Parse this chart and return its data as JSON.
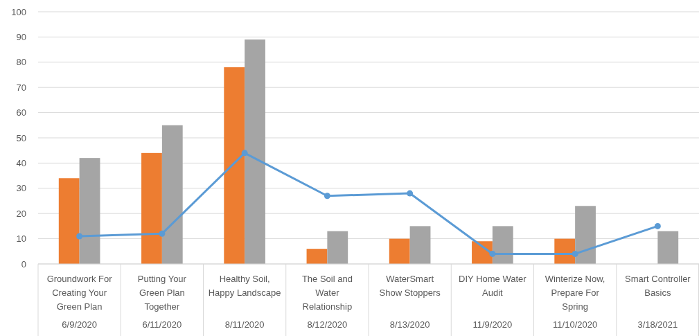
{
  "chart_data": {
    "type": "bar",
    "categories": [
      "Groundwork For\nCreating Your\nGreen Plan\n6/9/2020",
      "Putting Your\nGreen Plan\nTogether\n6/11/2020",
      "Healthy Soil,\nHappy Landscape\n\n8/11/2020",
      "The Soil and\nWater\nRelationship\n8/12/2020",
      "WaterSmart\nShow Stoppers\n\n8/13/2020",
      "DIY Home Water\nAudit\n\n11/9/2020",
      "Winterize Now,\nPrepare For\nSpring\n11/10/2020",
      "Smart Controller\nBasics\n\n3/18/2021"
    ],
    "series": [
      {
        "color": "#ed7d31",
        "values": [
          34,
          44,
          78,
          6,
          10,
          9,
          10,
          null
        ]
      },
      {
        "color": "#a5a5a5",
        "values": [
          42,
          55,
          89,
          13,
          15,
          15,
          23,
          13
        ]
      },
      {
        "type": "line",
        "color": "#5b9bd5",
        "marker": "circle",
        "values": [
          11,
          12,
          44,
          27,
          28,
          4,
          4,
          15
        ]
      }
    ],
    "ylim": [
      0,
      100
    ],
    "yticks": [
      0,
      10,
      20,
      30,
      40,
      50,
      60,
      70,
      80,
      90,
      100
    ],
    "grid": "y"
  }
}
